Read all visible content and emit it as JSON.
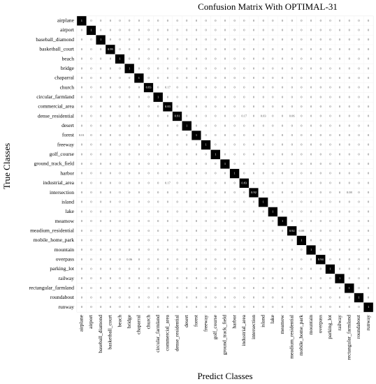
{
  "chart_data": {
    "type": "heatmap",
    "title": "Confusion Matrix With OPTIMAL-31",
    "x_label": "Predict Classes",
    "y_label": "True Classes",
    "x_labels": [
      "airplane",
      "airport",
      "baseball_diamond",
      "basketball_court",
      "beach",
      "bridge",
      "chaparral",
      "church",
      "circular_farmland",
      "commercial_area",
      "dense_residential",
      "desert",
      "forest",
      "freeway",
      "golf_course",
      "ground_track_field",
      "harbor",
      "industrial_area",
      "intersection",
      "island",
      "lake",
      "meamow",
      "meadium_residential",
      "mobile_home_park",
      "mountain",
      "overpass",
      "parking_lot",
      "railway",
      "rectangular_farmland",
      "roundabout",
      "runway"
    ],
    "y_labels": [
      "airplane",
      "airport",
      "baseball_diamond",
      "basketball_court",
      "beach",
      "bridge",
      "chaparral",
      "church",
      "circular_farmland",
      "commercial_area",
      "dense_residential",
      "desert",
      "forest",
      "freeway",
      "golf_course",
      "ground_track_field",
      "harbor",
      "industrial_area",
      "intersection",
      "island",
      "lake",
      "meamow",
      "meadium_residential",
      "mobile_home_park",
      "mountain",
      "overpass",
      "parking_lot",
      "railway",
      "rectangular_farmland",
      "roundabout",
      "runway"
    ],
    "colors": [
      "#ffffff",
      "#000000"
    ],
    "matrix": [
      [
        1,
        0,
        0,
        0,
        0,
        0,
        0,
        0,
        0,
        0,
        0,
        0,
        0,
        0,
        0,
        0,
        0,
        0,
        0,
        0,
        0,
        0,
        0,
        0,
        0,
        0,
        0,
        0,
        0,
        0,
        0
      ],
      [
        0,
        1,
        0,
        0,
        0,
        0,
        0,
        0,
        0,
        0,
        0,
        0,
        0,
        0,
        0,
        0,
        0,
        0,
        0,
        0,
        0,
        0,
        0,
        0,
        0,
        0,
        0,
        0,
        0,
        0,
        0
      ],
      [
        0,
        0,
        1,
        0,
        0,
        0,
        0,
        0,
        0,
        0,
        0,
        0,
        0,
        0,
        0,
        0,
        0,
        0,
        0,
        0,
        0,
        0,
        0,
        0,
        0,
        0,
        0,
        0,
        0,
        0,
        0
      ],
      [
        0,
        0,
        0,
        0.99,
        0,
        0,
        0,
        0,
        0,
        0,
        0,
        0,
        0,
        0,
        0,
        0,
        0,
        0,
        0,
        0,
        0,
        0,
        0,
        0,
        0,
        0,
        0,
        0,
        0,
        0,
        0
      ],
      [
        0,
        0,
        0,
        0,
        1,
        0,
        0,
        0,
        0,
        0,
        0,
        0,
        0,
        0,
        0,
        0,
        0,
        0,
        0,
        0,
        0,
        0,
        0,
        0,
        0,
        0,
        0,
        0,
        0,
        0,
        0
      ],
      [
        0,
        0,
        0,
        0,
        0,
        1,
        0,
        0,
        0,
        0,
        0,
        0,
        0,
        0,
        0,
        0,
        0,
        0,
        0,
        0,
        0,
        0,
        0,
        0,
        0,
        0,
        0,
        0,
        0,
        0,
        0
      ],
      [
        0,
        0,
        0,
        0,
        0,
        0,
        1,
        0,
        0,
        0,
        0,
        0,
        0,
        0,
        0,
        0,
        0,
        0,
        0,
        0,
        0,
        0,
        0,
        0,
        0,
        0,
        0,
        0,
        0,
        0,
        0
      ],
      [
        0,
        0,
        0,
        0,
        0,
        0,
        0,
        0.83,
        0,
        0.17,
        0,
        0,
        0,
        0,
        0,
        0,
        0,
        0,
        0,
        0,
        0,
        0,
        0,
        0,
        0,
        0,
        0,
        0,
        0,
        0,
        0
      ],
      [
        0,
        0,
        0,
        0,
        0,
        0,
        0,
        0,
        1,
        0,
        0,
        0,
        0,
        0,
        0,
        0,
        0,
        0,
        0,
        0,
        0,
        0,
        0,
        0,
        0,
        0,
        0,
        0,
        0,
        0,
        0
      ],
      [
        0,
        0,
        0,
        0,
        0,
        0,
        0,
        0,
        0,
        0.83,
        0,
        0,
        0,
        0,
        0,
        0,
        0,
        0,
        0,
        0,
        0,
        0,
        0,
        0,
        0,
        0,
        0,
        0,
        0,
        0,
        0
      ],
      [
        0,
        0,
        0,
        0,
        0,
        0,
        0,
        0,
        0,
        0,
        0.91,
        0,
        0,
        0,
        0,
        0,
        0,
        0.17,
        0,
        0.03,
        0,
        0,
        0.06,
        0,
        0,
        0,
        0,
        0,
        0,
        0,
        0
      ],
      [
        0,
        0,
        0,
        0,
        0,
        0,
        0,
        0,
        0,
        0,
        0,
        1,
        0,
        0,
        0,
        0,
        0,
        0,
        0,
        0,
        0,
        0,
        0,
        0,
        0,
        0,
        0,
        0,
        0,
        0,
        0
      ],
      [
        0.01,
        0,
        0,
        0,
        0,
        0,
        0,
        0,
        0,
        0,
        0,
        0,
        1,
        0,
        0,
        0,
        0,
        0,
        0,
        0,
        0,
        0,
        0,
        0,
        0,
        0,
        0,
        0,
        0,
        0,
        0
      ],
      [
        0,
        0,
        0,
        0,
        0,
        0,
        0,
        0,
        0,
        0,
        0,
        0,
        0,
        1,
        0,
        0,
        0,
        0,
        0,
        0,
        0,
        0,
        0,
        0,
        0,
        0,
        0,
        0,
        0,
        0,
        0
      ],
      [
        0,
        0,
        0,
        0,
        0,
        0,
        0,
        0,
        0,
        0,
        0,
        0,
        0,
        0,
        1,
        0,
        0,
        0,
        0,
        0,
        0,
        0,
        0,
        0,
        0,
        0,
        0,
        0,
        0,
        0,
        0
      ],
      [
        0,
        0,
        0,
        0,
        0,
        0,
        0,
        0,
        0,
        0,
        0,
        0,
        0,
        0,
        0,
        1,
        0,
        0,
        0,
        0,
        0,
        0,
        0,
        0,
        0,
        0,
        0,
        0,
        0,
        0,
        0
      ],
      [
        0,
        0,
        0,
        0,
        0,
        0,
        0,
        0,
        0,
        0,
        0,
        0,
        0,
        0,
        0,
        0,
        1,
        0,
        0,
        0,
        0,
        0,
        0,
        0,
        0,
        0,
        0,
        0,
        0,
        0,
        0
      ],
      [
        0,
        0,
        0,
        0,
        0,
        0,
        0,
        0,
        0,
        0.17,
        0,
        0,
        0,
        0,
        0,
        0,
        0,
        0.83,
        0,
        0,
        0,
        0,
        0,
        0,
        0,
        0,
        0,
        0,
        0,
        0,
        0
      ],
      [
        0,
        0,
        0,
        0,
        0,
        0,
        0,
        0,
        0,
        0,
        0,
        0,
        0,
        0,
        0,
        0,
        0,
        0,
        0.92,
        0,
        0,
        0,
        0,
        0,
        0,
        0,
        0,
        0,
        0.08,
        0,
        0
      ],
      [
        0,
        0,
        0,
        0,
        0,
        0,
        0,
        0,
        0,
        0,
        0,
        0,
        0,
        0,
        0,
        0,
        0,
        0,
        0,
        1,
        0,
        0,
        0,
        0,
        0,
        0,
        0,
        0,
        0,
        0,
        0
      ],
      [
        0,
        0,
        0,
        0,
        0,
        0,
        0,
        0,
        0,
        0,
        0,
        0,
        0,
        0,
        0,
        0,
        0,
        0,
        0,
        0,
        1,
        0,
        0,
        0,
        0,
        0,
        0,
        0,
        0,
        0,
        0
      ],
      [
        0,
        0,
        0,
        0,
        0,
        0,
        0,
        0,
        0,
        0,
        0,
        0,
        0,
        0,
        0,
        0,
        0,
        0,
        0,
        0,
        0,
        1,
        0,
        0,
        0,
        0,
        0,
        0,
        0,
        0,
        0
      ],
      [
        0,
        0,
        0,
        0,
        0,
        0,
        0,
        0,
        0,
        0,
        0,
        0,
        0,
        0,
        0,
        0,
        0,
        0,
        0,
        0,
        0,
        0,
        0.92,
        0.08,
        0,
        0,
        0,
        0,
        0,
        0,
        0
      ],
      [
        0,
        0,
        0,
        0,
        0,
        0,
        0,
        0,
        0,
        0,
        0,
        0,
        0,
        0,
        0,
        0,
        0,
        0,
        0,
        0,
        0,
        0,
        0,
        1,
        0,
        0,
        0,
        0,
        0,
        0,
        0
      ],
      [
        0,
        0,
        0,
        0,
        0,
        0,
        0,
        0,
        0,
        0,
        0,
        0,
        0,
        0,
        0,
        0,
        0,
        0,
        0,
        0,
        0,
        0,
        0,
        0,
        1,
        0,
        0,
        0,
        0,
        0,
        0
      ],
      [
        0,
        0,
        0,
        0,
        0,
        0.06,
        0,
        0,
        0,
        0,
        0,
        0,
        0,
        0,
        0,
        0,
        0,
        0,
        0,
        0,
        0,
        0,
        0,
        0,
        0,
        0.94,
        0,
        0,
        0,
        0,
        0
      ],
      [
        0,
        0,
        0,
        0,
        0,
        0,
        0,
        0,
        0,
        0,
        0,
        0,
        0,
        0,
        0,
        0,
        0,
        0,
        0,
        0,
        0,
        0,
        0,
        0,
        0,
        0,
        1,
        0,
        0,
        0,
        0
      ],
      [
        0,
        0,
        0,
        0,
        0,
        0,
        0,
        0,
        0,
        0,
        0,
        0,
        0,
        0,
        0,
        0,
        0,
        0,
        0,
        0,
        0,
        0,
        0,
        0,
        0,
        0,
        0,
        1,
        0,
        0,
        0
      ],
      [
        0,
        0,
        0,
        0,
        0,
        0,
        0,
        0,
        0,
        0,
        0,
        0,
        0,
        0,
        0,
        0,
        0,
        0,
        0,
        0,
        0,
        0,
        0,
        0,
        0,
        0,
        0,
        0,
        1,
        0,
        0
      ],
      [
        0,
        0,
        0,
        0,
        0,
        0,
        0,
        0,
        0,
        0,
        0,
        0,
        0,
        0,
        0,
        0,
        0,
        0,
        0,
        0,
        0,
        0,
        0,
        0,
        0,
        0,
        0,
        0,
        0,
        1,
        0
      ],
      [
        0,
        0,
        0,
        0,
        0,
        0,
        0,
        0,
        0,
        0,
        0,
        0,
        0,
        0,
        0,
        0,
        0,
        0,
        0,
        0,
        0,
        0,
        0,
        0,
        0,
        0,
        0,
        0,
        0,
        0,
        1
      ]
    ]
  }
}
